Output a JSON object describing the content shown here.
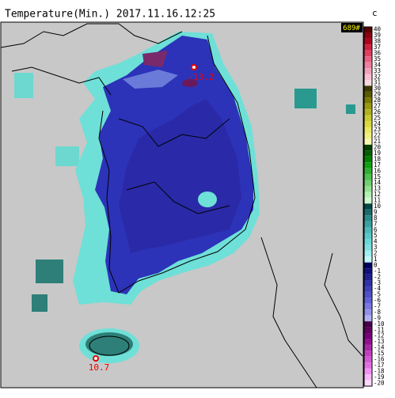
{
  "header": {
    "title": "Temperature(Min.) 2017.11.16.12:25",
    "unit": "c",
    "count": "689#"
  },
  "colorbar": {
    "labels": [
      40,
      39,
      38,
      37,
      36,
      35,
      34,
      33,
      32,
      31,
      30,
      29,
      28,
      27,
      26,
      25,
      24,
      23,
      22,
      21,
      20,
      19,
      18,
      17,
      16,
      15,
      14,
      13,
      12,
      11,
      10,
      9,
      8,
      7,
      6,
      5,
      4,
      3,
      2,
      1,
      0,
      -1,
      -2,
      -3,
      -4,
      -5,
      -6,
      -7,
      -8,
      -9,
      -10,
      -11,
      -12,
      -13,
      -14,
      -15,
      -16,
      -17,
      -18,
      -19,
      -20
    ]
  },
  "stations": [
    {
      "label": "-13.2"
    },
    {
      "label": "10.7"
    }
  ]
}
